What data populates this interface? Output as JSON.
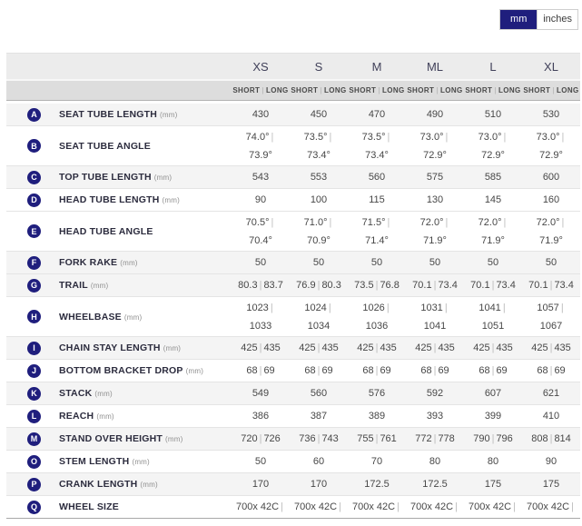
{
  "unit_toggle": {
    "mm_label": "mm",
    "inches_label": "inches",
    "selected": "mm"
  },
  "geometry_table": {
    "size_headers": [
      "XS",
      "S",
      "M",
      "ML",
      "L",
      "XL"
    ],
    "fit_headers": {
      "short": "SHORT",
      "long": "LONG"
    },
    "rows": [
      {
        "letter": "A",
        "label": "SEAT TUBE LENGTH",
        "unit": "(mm)",
        "type": "single",
        "values": [
          "430",
          "450",
          "470",
          "490",
          "510",
          "530"
        ]
      },
      {
        "letter": "B",
        "label": "SEAT TUBE ANGLE",
        "unit": "",
        "type": "stacked",
        "values": [
          [
            "74.0°",
            "73.9°"
          ],
          [
            "73.5°",
            "73.4°"
          ],
          [
            "73.5°",
            "73.4°"
          ],
          [
            "73.0°",
            "72.9°"
          ],
          [
            "73.0°",
            "72.9°"
          ],
          [
            "73.0°",
            "72.9°"
          ]
        ]
      },
      {
        "letter": "C",
        "label": "TOP TUBE LENGTH",
        "unit": "(mm)",
        "type": "single",
        "values": [
          "543",
          "553",
          "560",
          "575",
          "585",
          "600"
        ]
      },
      {
        "letter": "D",
        "label": "HEAD TUBE LENGTH",
        "unit": "(mm)",
        "type": "single",
        "values": [
          "90",
          "100",
          "115",
          "130",
          "145",
          "160"
        ]
      },
      {
        "letter": "E",
        "label": "HEAD TUBE ANGLE",
        "unit": "",
        "type": "stacked",
        "values": [
          [
            "70.5°",
            "70.4°"
          ],
          [
            "71.0°",
            "70.9°"
          ],
          [
            "71.5°",
            "71.4°"
          ],
          [
            "72.0°",
            "71.9°"
          ],
          [
            "72.0°",
            "71.9°"
          ],
          [
            "72.0°",
            "71.9°"
          ]
        ]
      },
      {
        "letter": "F",
        "label": "FORK RAKE",
        "unit": "(mm)",
        "type": "single",
        "values": [
          "50",
          "50",
          "50",
          "50",
          "50",
          "50"
        ]
      },
      {
        "letter": "G",
        "label": "TRAIL",
        "unit": "(mm)",
        "type": "pair",
        "values": [
          [
            "80.3",
            "83.7"
          ],
          [
            "76.9",
            "80.3"
          ],
          [
            "73.5",
            "76.8"
          ],
          [
            "70.1",
            "73.4"
          ],
          [
            "70.1",
            "73.4"
          ],
          [
            "70.1",
            "73.4"
          ]
        ]
      },
      {
        "letter": "H",
        "label": "WHEELBASE",
        "unit": "(mm)",
        "type": "stacked",
        "values": [
          [
            "1023",
            "1033"
          ],
          [
            "1024",
            "1034"
          ],
          [
            "1026",
            "1036"
          ],
          [
            "1031",
            "1041"
          ],
          [
            "1041",
            "1051"
          ],
          [
            "1057",
            "1067"
          ]
        ]
      },
      {
        "letter": "I",
        "label": "CHAIN STAY LENGTH",
        "unit": "(mm)",
        "type": "pair",
        "values": [
          [
            "425",
            "435"
          ],
          [
            "425",
            "435"
          ],
          [
            "425",
            "435"
          ],
          [
            "425",
            "435"
          ],
          [
            "425",
            "435"
          ],
          [
            "425",
            "435"
          ]
        ]
      },
      {
        "letter": "J",
        "label": "BOTTOM BRACKET DROP",
        "unit": "(mm)",
        "type": "pair",
        "values": [
          [
            "68",
            "69"
          ],
          [
            "68",
            "69"
          ],
          [
            "68",
            "69"
          ],
          [
            "68",
            "69"
          ],
          [
            "68",
            "69"
          ],
          [
            "68",
            "69"
          ]
        ]
      },
      {
        "letter": "K",
        "label": "STACK",
        "unit": "(mm)",
        "type": "single",
        "values": [
          "549",
          "560",
          "576",
          "592",
          "607",
          "621"
        ]
      },
      {
        "letter": "L",
        "label": "REACH",
        "unit": "(mm)",
        "type": "single",
        "values": [
          "386",
          "387",
          "389",
          "393",
          "399",
          "410"
        ]
      },
      {
        "letter": "M",
        "label": "STAND OVER HEIGHT",
        "unit": "(mm)",
        "type": "pair",
        "values": [
          [
            "720",
            "726"
          ],
          [
            "736",
            "743"
          ],
          [
            "755",
            "761"
          ],
          [
            "772",
            "778"
          ],
          [
            "790",
            "796"
          ],
          [
            "808",
            "814"
          ]
        ]
      },
      {
        "letter": "O",
        "label": "STEM LENGTH",
        "unit": "(mm)",
        "type": "single",
        "values": [
          "50",
          "60",
          "70",
          "80",
          "80",
          "90"
        ]
      },
      {
        "letter": "P",
        "label": "CRANK LENGTH",
        "unit": "(mm)",
        "type": "single",
        "values": [
          "170",
          "170",
          "172.5",
          "172.5",
          "175",
          "175"
        ]
      },
      {
        "letter": "Q",
        "label": "WHEEL SIZE",
        "unit": "",
        "type": "wheel",
        "values": [
          "700x 42C",
          "700x 42C",
          "700x 42C",
          "700x 42C",
          "700x 42C",
          "700x 42C"
        ]
      }
    ]
  },
  "colors": {
    "navy": "#1f1e7d",
    "shaded_row_bg": "#f4f4f4",
    "size_header_bg": "#ececec",
    "fit_header_bg": "#dddddd",
    "pipe": "#bdbdbd"
  }
}
